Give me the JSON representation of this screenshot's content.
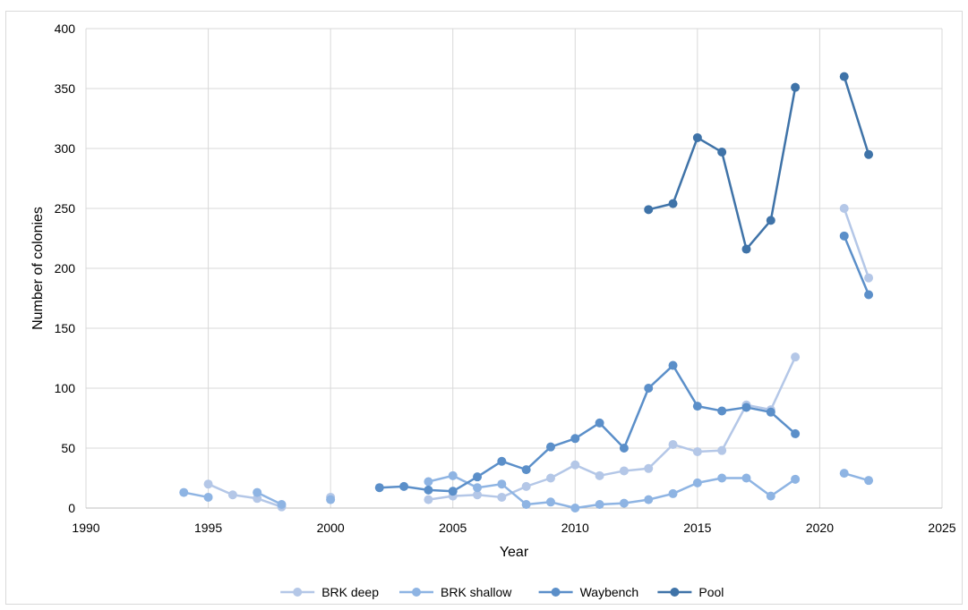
{
  "chart_data": {
    "type": "line",
    "title": "",
    "xlabel": "Year",
    "ylabel": "Number of colonies",
    "xlim": [
      1990,
      2025
    ],
    "ylim": [
      0,
      400
    ],
    "xticks": [
      1990,
      1995,
      2000,
      2005,
      2010,
      2015,
      2020,
      2025
    ],
    "yticks": [
      0,
      50,
      100,
      150,
      200,
      250,
      300,
      350,
      400
    ],
    "grid": true,
    "legend_position": "bottom",
    "series": [
      {
        "name": "BRK deep",
        "color": "#b4c7e7",
        "points": [
          [
            1995,
            20
          ],
          [
            1996,
            11
          ],
          [
            1997,
            8
          ],
          [
            1998,
            1
          ],
          null,
          [
            2000,
            9
          ],
          null,
          [
            2004,
            7
          ],
          [
            2005,
            10
          ],
          [
            2006,
            11
          ],
          [
            2007,
            9
          ],
          [
            2008,
            18
          ],
          [
            2009,
            25
          ],
          [
            2010,
            36
          ],
          [
            2011,
            27
          ],
          [
            2012,
            31
          ],
          [
            2013,
            33
          ],
          [
            2014,
            53
          ],
          [
            2015,
            47
          ],
          [
            2016,
            48
          ],
          [
            2017,
            86
          ],
          [
            2018,
            82
          ],
          [
            2019,
            126
          ],
          null,
          [
            2021,
            250
          ],
          [
            2022,
            192
          ]
        ]
      },
      {
        "name": "BRK shallow",
        "color": "#8eb4e3",
        "points": [
          [
            1994,
            13
          ],
          [
            1995,
            9
          ],
          null,
          [
            1997,
            13
          ],
          [
            1998,
            3
          ],
          null,
          [
            2000,
            7
          ],
          null,
          [
            2004,
            22
          ],
          [
            2005,
            27
          ],
          [
            2006,
            17
          ],
          [
            2007,
            20
          ],
          [
            2008,
            3
          ],
          [
            2009,
            5
          ],
          [
            2010,
            0
          ],
          [
            2011,
            3
          ],
          [
            2012,
            4
          ],
          [
            2013,
            7
          ],
          [
            2014,
            12
          ],
          [
            2015,
            21
          ],
          [
            2016,
            25
          ],
          [
            2017,
            25
          ],
          [
            2018,
            10
          ],
          [
            2019,
            24
          ],
          null,
          [
            2021,
            29
          ],
          [
            2022,
            23
          ]
        ]
      },
      {
        "name": "Waybench",
        "color": "#5b8fc9",
        "points": [
          [
            2002,
            17
          ],
          [
            2003,
            18
          ],
          [
            2004,
            15
          ],
          [
            2005,
            14
          ],
          [
            2006,
            26
          ],
          [
            2007,
            39
          ],
          [
            2008,
            32
          ],
          [
            2009,
            51
          ],
          [
            2010,
            58
          ],
          [
            2011,
            71
          ],
          [
            2012,
            50
          ],
          [
            2013,
            100
          ],
          [
            2014,
            119
          ],
          [
            2015,
            85
          ],
          [
            2016,
            81
          ],
          [
            2017,
            84
          ],
          [
            2018,
            80
          ],
          [
            2019,
            62
          ],
          null,
          [
            2021,
            227
          ],
          [
            2022,
            178
          ]
        ]
      },
      {
        "name": "Pool",
        "color": "#3f73a8",
        "points": [
          [
            2013,
            249
          ],
          [
            2014,
            254
          ],
          [
            2015,
            309
          ],
          [
            2016,
            297
          ],
          [
            2017,
            216
          ],
          [
            2018,
            240
          ],
          [
            2019,
            351
          ],
          null,
          [
            2021,
            360
          ],
          [
            2022,
            295
          ]
        ]
      }
    ]
  }
}
